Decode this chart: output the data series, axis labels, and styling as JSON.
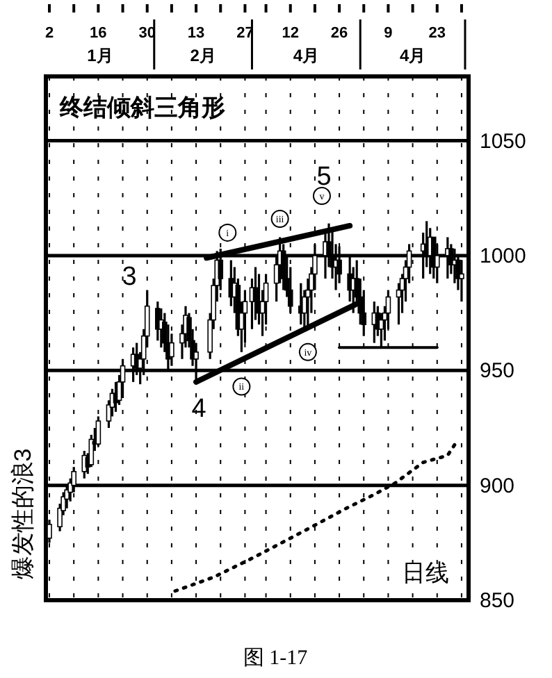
{
  "chart_data": {
    "type": "candlestick",
    "title": "终结倾斜三角形",
    "x": [
      "--01-02",
      "--01-05",
      "--01-06",
      "--01-07",
      "--01-08",
      "--01-09",
      "--01-12",
      "--01-13",
      "--01-14",
      "--01-15",
      "--01-16",
      "--01-19",
      "--01-20",
      "--01-21",
      "--01-22",
      "--01-23",
      "--01-26",
      "--01-27",
      "--01-28",
      "--01-29",
      "--01-30",
      "--02-02",
      "--02-03",
      "--02-04",
      "--02-05",
      "--02-06",
      "--02-09",
      "--02-10",
      "--02-11",
      "--02-12",
      "--02-13",
      "--02-17",
      "--02-18",
      "--02-19",
      "--02-20",
      "--02-23",
      "--02-24",
      "--02-25",
      "--02-26",
      "--02-27",
      "--03-01",
      "--03-02",
      "--03-03",
      "--03-04",
      "--03-05",
      "--03-08",
      "--03-09",
      "--03-10",
      "--03-11",
      "--03-12",
      "--03-15",
      "--03-16",
      "--03-17",
      "--03-18",
      "--03-19",
      "--03-22",
      "--03-23",
      "--03-24",
      "--03-25",
      "--03-26",
      "--03-29",
      "--03-30",
      "--03-31",
      "--04-01",
      "--04-02",
      "--04-05",
      "--04-06",
      "--04-07",
      "--04-08",
      "--04-09",
      "--04-12",
      "--04-13",
      "--04-14",
      "--04-15",
      "--04-19",
      "--04-20",
      "--04-21",
      "--04-22",
      "--04-23",
      "--04-26",
      "--04-27",
      "--04-28",
      "--04-29",
      "--04-30"
    ],
    "ohlc": [
      [
        877,
        885,
        875,
        883
      ],
      [
        882,
        892,
        880,
        890
      ],
      [
        889,
        897,
        887,
        895
      ],
      [
        894,
        900,
        890,
        898
      ],
      [
        897,
        903,
        893,
        901
      ],
      [
        900,
        908,
        897,
        906
      ],
      [
        906,
        915,
        903,
        913
      ],
      [
        912,
        914,
        905,
        908
      ],
      [
        909,
        922,
        908,
        920
      ],
      [
        919,
        925,
        915,
        918
      ],
      [
        918,
        930,
        917,
        928
      ],
      [
        928,
        937,
        925,
        935
      ],
      [
        934,
        942,
        930,
        940
      ],
      [
        940,
        945,
        932,
        936
      ],
      [
        937,
        948,
        935,
        945
      ],
      [
        945,
        955,
        938,
        952
      ],
      [
        952,
        960,
        945,
        957
      ],
      [
        957,
        962,
        948,
        951
      ],
      [
        951,
        958,
        944,
        955
      ],
      [
        955,
        968,
        948,
        965
      ],
      [
        965,
        985,
        960,
        978
      ],
      [
        977,
        980,
        963,
        968
      ],
      [
        968,
        977,
        960,
        972
      ],
      [
        971,
        975,
        958,
        962
      ],
      [
        962,
        970,
        950,
        955
      ],
      [
        956,
        966,
        952,
        962
      ],
      [
        962,
        970,
        955,
        966
      ],
      [
        966,
        978,
        960,
        974
      ],
      [
        973,
        975,
        960,
        963
      ],
      [
        963,
        968,
        952,
        955
      ],
      [
        955,
        962,
        945,
        958
      ],
      [
        958,
        975,
        955,
        972
      ],
      [
        972,
        990,
        968,
        987
      ],
      [
        987,
        1002,
        980,
        998
      ],
      [
        998,
        1003,
        985,
        990
      ],
      [
        990,
        998,
        978,
        982
      ],
      [
        982,
        995,
        975,
        988
      ],
      [
        987,
        990,
        965,
        968
      ],
      [
        968,
        980,
        958,
        975
      ],
      [
        975,
        985,
        962,
        980
      ],
      [
        980,
        990,
        968,
        986
      ],
      [
        986,
        995,
        972,
        980
      ],
      [
        980,
        992,
        970,
        975
      ],
      [
        975,
        985,
        965,
        980
      ],
      [
        980,
        992,
        970,
        988
      ],
      [
        988,
        1000,
        980,
        996
      ],
      [
        996,
        1008,
        988,
        1002
      ],
      [
        1002,
        1005,
        985,
        990
      ],
      [
        990,
        1000,
        982,
        985
      ],
      [
        985,
        995,
        975,
        978
      ],
      [
        978,
        988,
        970,
        975
      ],
      [
        975,
        985,
        968,
        982
      ],
      [
        982,
        990,
        969,
        985
      ],
      [
        985,
        995,
        975,
        992
      ],
      [
        992,
        1005,
        985,
        1000
      ],
      [
        1000,
        1010,
        990,
        1006
      ],
      [
        1006,
        1014,
        995,
        1000
      ],
      [
        1000,
        1012,
        990,
        995
      ],
      [
        995,
        1005,
        985,
        998
      ],
      [
        998,
        1004,
        988,
        992
      ],
      [
        992,
        1000,
        980,
        985
      ],
      [
        985,
        995,
        975,
        990
      ],
      [
        990,
        998,
        978,
        982
      ],
      [
        982,
        990,
        970,
        975
      ],
      [
        975,
        985,
        965,
        970
      ],
      [
        970,
        980,
        962,
        975
      ],
      [
        975,
        978,
        965,
        968
      ],
      [
        968,
        975,
        960,
        972
      ],
      [
        972,
        978,
        963,
        975
      ],
      [
        975,
        985,
        968,
        982
      ],
      [
        982,
        988,
        970,
        985
      ],
      [
        985,
        992,
        975,
        990
      ],
      [
        990,
        998,
        980,
        995
      ],
      [
        995,
        1005,
        988,
        1002
      ],
      [
        1002,
        1010,
        990,
        1005
      ],
      [
        1005,
        1015,
        995,
        1000
      ],
      [
        1000,
        1012,
        992,
        1008
      ],
      [
        1008,
        1008,
        990,
        995
      ],
      [
        995,
        1005,
        988,
        1000
      ],
      [
        1000,
        1008,
        990,
        1003
      ],
      [
        1003,
        1005,
        992,
        996
      ],
      [
        996,
        1003,
        988,
        998
      ],
      [
        998,
        1000,
        985,
        990
      ],
      [
        990,
        998,
        980,
        992
      ]
    ],
    "series": [
      {
        "type": "line",
        "color": "#000000",
        "line_style": "dotted",
        "x": [
          "--02-07",
          "--02-18",
          "--03-02",
          "--03-17",
          "--03-28",
          "--04-05",
          "--04-11",
          "--04-19",
          "--04-26",
          "--04-29"
        ],
        "values": [
          854,
          860,
          869,
          881,
          890,
          896,
          901,
          910,
          913,
          920
        ]
      },
      {
        "type": "line",
        "color": "#000000",
        "line_style": "solid",
        "x": [
          "--02-16",
          "--03-29"
        ],
        "values": [
          999,
          1013
        ]
      },
      {
        "type": "line",
        "color": "#000000",
        "line_style": "solid",
        "x": [
          "--02-13",
          "--03-31"
        ],
        "values": [
          945,
          979
        ]
      },
      {
        "type": "line",
        "color": "#000000",
        "line_style": "solid",
        "x": [
          "--03-26",
          "--04-23"
        ],
        "values": [
          960,
          960
        ]
      }
    ],
    "xlim": [
      "--01-01",
      "--05-02"
    ],
    "xticks": [
      {
        "value": "--01-02",
        "label": "2"
      },
      {
        "value": "--01-09",
        "label": null
      },
      {
        "value": "--01-16",
        "label": "16"
      },
      {
        "value": "--01-23",
        "label": null
      },
      {
        "value": "--01-30",
        "label": "30"
      },
      {
        "value": "--02-06",
        "label": null
      },
      {
        "value": "--02-13",
        "label": "13"
      },
      {
        "value": "--02-20",
        "label": null
      },
      {
        "value": "--02-27",
        "label": "27"
      },
      {
        "value": "--03-05",
        "label": null
      },
      {
        "value": "--03-12",
        "label": "12"
      },
      {
        "value": "--03-19",
        "label": null
      },
      {
        "value": "--03-26",
        "label": "26"
      },
      {
        "value": "--04-02",
        "label": null
      },
      {
        "value": "--04-09",
        "label": "9"
      },
      {
        "value": "--04-16",
        "label": null
      },
      {
        "value": "--04-23",
        "label": "23"
      },
      {
        "value": "--04-30",
        "label": null
      }
    ],
    "ylim": [
      850,
      1078
    ],
    "yticks": [
      850,
      900,
      950,
      1000,
      1050
    ],
    "grid": true,
    "annotations": [
      "爆发性的浪3",
      "日线",
      "图 1-17",
      "1月",
      "2月",
      "4月",
      "4月",
      "3",
      "4",
      "5",
      {
        "text": "i",
        "x": "--02-22",
        "y": 1010
      },
      {
        "text": "ii",
        "x": "--02-26",
        "y": 943
      },
      {
        "text": "iii",
        "x": "--03-09",
        "y": 1016
      },
      {
        "text": "iv",
        "x": "--03-17",
        "y": 958
      },
      {
        "text": "v",
        "x": "--03-21",
        "y": 1026
      }
    ]
  }
}
